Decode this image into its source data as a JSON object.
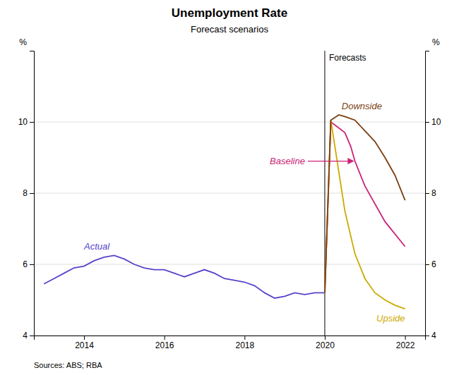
{
  "chart_data": {
    "type": "line",
    "title": "Unemployment Rate",
    "subtitle": "Forecast scenarios",
    "ylabel": "%",
    "y2label": "%",
    "annotations": [
      "Forecasts",
      "Sources: ABS; RBA"
    ],
    "xlim": [
      2012.75,
      2022.5
    ],
    "xticks": [
      2014,
      2016,
      2018,
      2020,
      2022
    ],
    "ylim": [
      4,
      12
    ],
    "yticks": [
      4,
      6,
      8,
      10
    ],
    "y2lim": [
      4,
      12
    ],
    "y2ticks": [
      4,
      6,
      8,
      10
    ],
    "grid": true,
    "vline": 2020.0,
    "series": [
      {
        "name": "Actual",
        "color": "#5544cc",
        "x": [
          2013.0,
          2013.25,
          2013.5,
          2013.75,
          2014.0,
          2014.25,
          2014.5,
          2014.75,
          2015.0,
          2015.25,
          2015.5,
          2015.75,
          2016.0,
          2016.25,
          2016.5,
          2016.75,
          2017.0,
          2017.25,
          2017.5,
          2017.75,
          2018.0,
          2018.25,
          2018.5,
          2018.75,
          2019.0,
          2019.25,
          2019.5,
          2019.75,
          2020.0
        ],
        "values": [
          5.45,
          5.6,
          5.75,
          5.9,
          5.95,
          6.1,
          6.2,
          6.25,
          6.15,
          6.0,
          5.9,
          5.85,
          5.85,
          5.75,
          5.65,
          5.75,
          5.85,
          5.75,
          5.6,
          5.55,
          5.5,
          5.4,
          5.2,
          5.05,
          5.1,
          5.2,
          5.15,
          5.2,
          5.2
        ]
      },
      {
        "name": "Baseline",
        "color": "#cc2277",
        "x": [
          2020.0,
          2020.15,
          2020.5,
          2020.65,
          2020.75,
          2021.0,
          2021.5,
          2022.0
        ],
        "values": [
          5.2,
          10.0,
          9.7,
          9.3,
          8.9,
          8.2,
          7.2,
          6.5
        ]
      },
      {
        "name": "Upside",
        "color": "#ccaa00",
        "x": [
          2020.0,
          2020.15,
          2020.5,
          2020.75,
          2021.0,
          2021.25,
          2021.5,
          2021.75,
          2022.0
        ],
        "values": [
          5.2,
          10.05,
          7.5,
          6.3,
          5.6,
          5.2,
          5.0,
          4.85,
          4.75
        ]
      },
      {
        "name": "Downside",
        "color": "#7b3f10",
        "x": [
          2020.0,
          2020.15,
          2020.35,
          2020.5,
          2020.75,
          2021.0,
          2021.25,
          2021.5,
          2021.75,
          2022.0
        ],
        "values": [
          5.2,
          10.05,
          10.2,
          10.15,
          10.05,
          9.75,
          9.45,
          9.0,
          8.5,
          7.8
        ]
      }
    ]
  }
}
